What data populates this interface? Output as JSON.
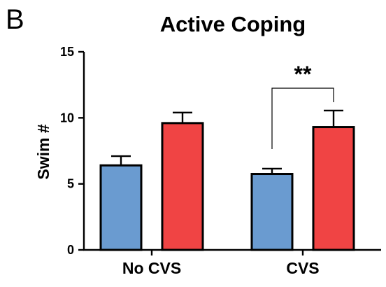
{
  "panel_label": "B",
  "chart_data": {
    "type": "bar",
    "title": "Active Coping",
    "xlabel": "",
    "ylabel": "Swim #",
    "ylim": [
      0,
      15
    ],
    "yticks": [
      0,
      5,
      10,
      15
    ],
    "categories": [
      "No CVS",
      "CVS"
    ],
    "series": [
      {
        "values": [
          6.4,
          5.75
        ],
        "errors": [
          0.7,
          0.4
        ],
        "color": "#6a9bd0"
      },
      {
        "values": [
          9.6,
          9.3
        ],
        "errors": [
          0.8,
          1.25
        ],
        "color": "#f04444"
      }
    ],
    "annotations": [
      {
        "label": "**",
        "category": "CVS",
        "between_series": [
          0,
          1
        ]
      }
    ],
    "grid": false,
    "legend": "none"
  }
}
